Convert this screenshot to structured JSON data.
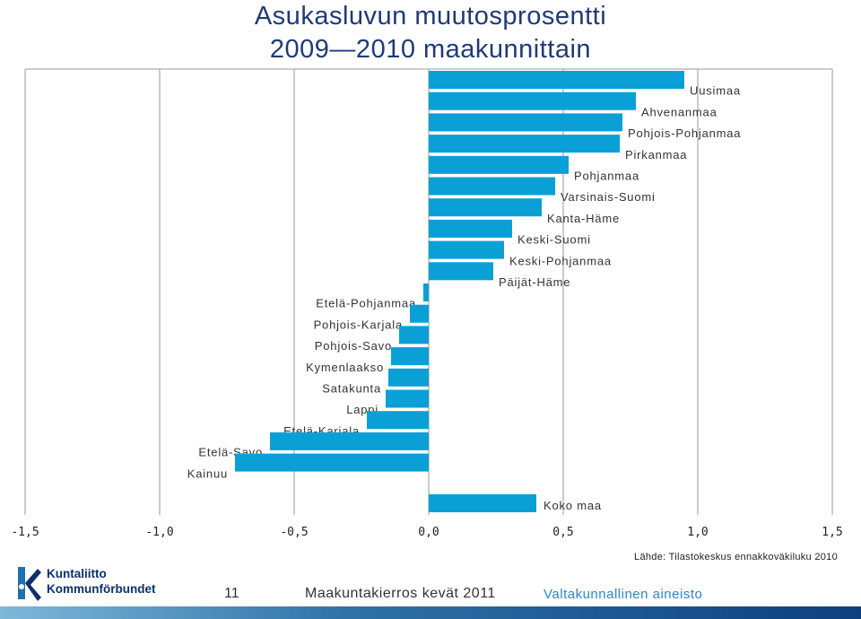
{
  "title_line1": "Asukasluvun muutosprosentti",
  "title_line2": "2009—2010 maakunnittain",
  "source": "Lähde: Tilastokeskus ennakkoväkiluku 2010",
  "footer": {
    "logo_line1": "Kuntaliitto",
    "logo_line2": "Kommunförbundet",
    "page_number": "11",
    "round": "Maakuntakierros kevät 2011",
    "material": "Valtakunnallinen aineisto"
  },
  "colors": {
    "bar": "#0aa0d6",
    "title": "#1f3a7a",
    "grid": "#9a9a9a"
  },
  "chart_data": {
    "type": "bar",
    "orientation": "horizontal",
    "xlim": [
      -1.5,
      1.5
    ],
    "x_ticks": [
      -1.5,
      -1.0,
      -0.5,
      0.0,
      0.5,
      1.0,
      1.5
    ],
    "x_tick_labels": [
      "-1,5",
      "-1,0",
      "-0,5",
      "0,0",
      "0,5",
      "1,0",
      "1,5"
    ],
    "grid": "vertical",
    "categories": [
      "Uusimaa",
      "Ahvenanmaa",
      "Pohjois-Pohjanmaa",
      "Pirkanmaa",
      "Pohjanmaa",
      "Varsinais-Suomi",
      "Kanta-Häme",
      "Keski-Suomi",
      "Keski-Pohjanmaa",
      "Päijät-Häme",
      "Etelä-Pohjanmaa",
      "Pohjois-Karjala",
      "Pohjois-Savo",
      "Kymenlaakso",
      "Satakunta",
      "Lappi",
      "Etelä-Karjala",
      "Etelä-Savo",
      "Kainuu"
    ],
    "values": [
      0.95,
      0.77,
      0.72,
      0.71,
      0.52,
      0.47,
      0.42,
      0.31,
      0.28,
      0.24,
      -0.02,
      -0.07,
      -0.11,
      -0.14,
      -0.15,
      -0.16,
      -0.23,
      -0.59,
      -0.72
    ],
    "total": {
      "label": "Koko maa",
      "value": 0.4
    }
  }
}
